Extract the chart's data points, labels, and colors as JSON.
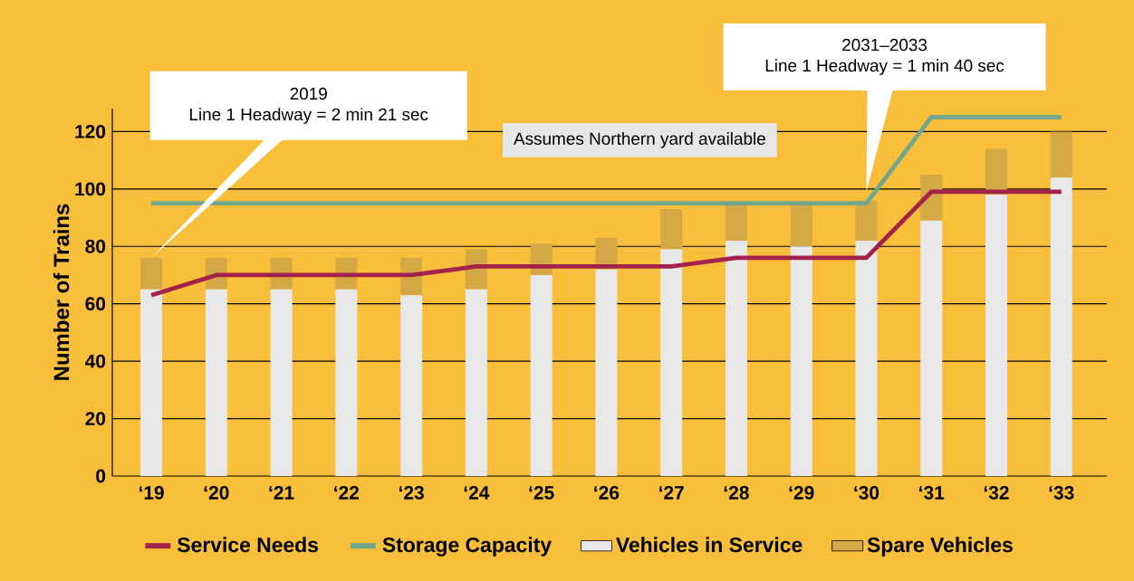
{
  "chart_data": {
    "type": "bar",
    "ylabel": "Number of Trains",
    "stacked": true,
    "grid": "y",
    "legend": "bottom",
    "categories": [
      "‘19",
      "‘20",
      "‘21",
      "‘22",
      "‘23",
      "‘24",
      "‘25",
      "‘26",
      "‘27",
      "‘28",
      "‘29",
      "‘30",
      "‘31",
      "‘32",
      "‘33"
    ],
    "ylim": [
      0,
      128
    ],
    "yticks": [
      0,
      20,
      40,
      60,
      80,
      100,
      120
    ],
    "series": [
      {
        "name": "Service Needs",
        "type": "line",
        "color": "#a3214a",
        "values": [
          63,
          70,
          70,
          70,
          70,
          73,
          73,
          73,
          73,
          76,
          76,
          76,
          99,
          99,
          99
        ]
      },
      {
        "name": "Storage Capacity",
        "type": "line",
        "color": "#6fa68c",
        "values": [
          95,
          95,
          95,
          95,
          95,
          95,
          95,
          95,
          95,
          95,
          95,
          95,
          125,
          125,
          125
        ]
      },
      {
        "name": "Vehicles in Service",
        "color": "#e8e8e8",
        "values": [
          65,
          65,
          65,
          65,
          63,
          65,
          70,
          72,
          79,
          82,
          80,
          82,
          89,
          98,
          104
        ]
      },
      {
        "name": "Spare Vehicles",
        "color": "#d4a844",
        "values": [
          11,
          11,
          11,
          11,
          13,
          14,
          11,
          11,
          14,
          13,
          15,
          14,
          16,
          16,
          16
        ]
      }
    ],
    "annotations": [
      "2019",
      "Line 1 Headway = 2 min 21 sec",
      "2031–2033",
      "Line 1 Headway = 1 min 40 sec",
      "Assumes Northern yard available"
    ]
  }
}
